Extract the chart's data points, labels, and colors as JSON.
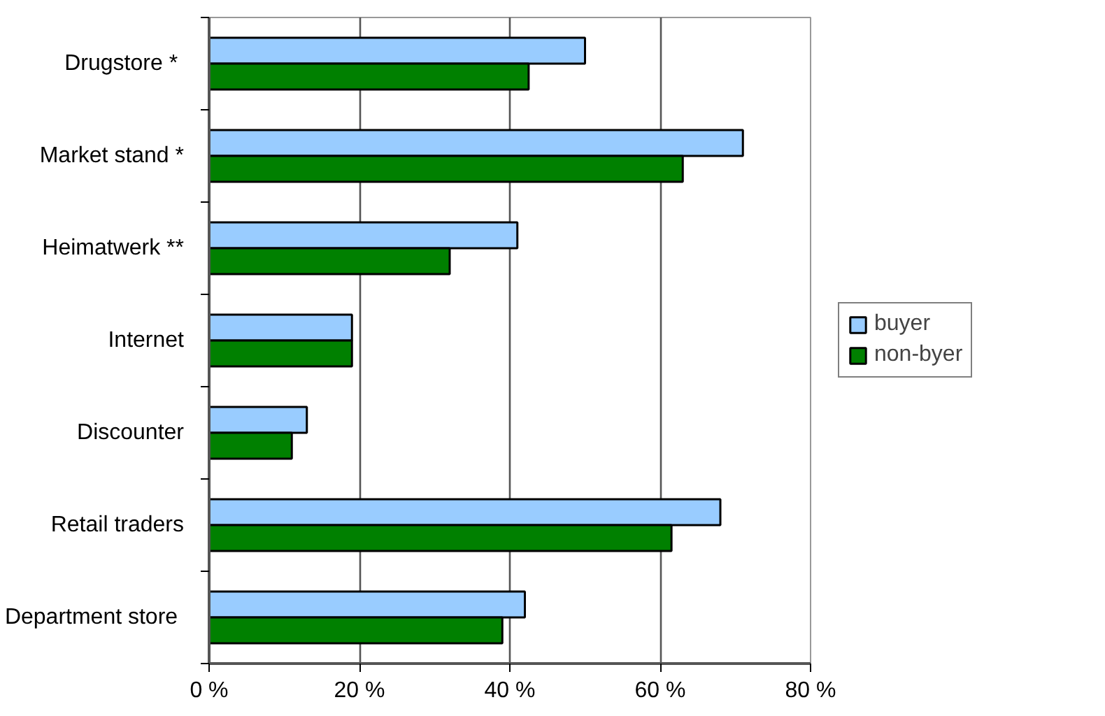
{
  "chart_data": {
    "type": "bar",
    "orientation": "horizontal",
    "categories": [
      "Drugstore  *",
      "Market stand *",
      "Heimatwerk **",
      "Internet",
      "Discounter",
      "Retail traders",
      "Department  store"
    ],
    "series": [
      {
        "name": "buyer",
        "color": "#99ccff",
        "values": [
          50,
          71,
          41,
          19,
          13,
          68,
          42
        ]
      },
      {
        "name": "non-byer",
        "color": "#008000",
        "values": [
          42.5,
          63,
          32,
          19,
          11,
          61.5,
          39
        ]
      }
    ],
    "xlim": [
      0,
      80
    ],
    "xticks": [
      {
        "value": 0,
        "label": "0 %"
      },
      {
        "value": 20,
        "label": "20 %"
      },
      {
        "value": 40,
        "label": "40 %"
      },
      {
        "value": 60,
        "label": "60 %"
      },
      {
        "value": 80,
        "label": "80 %"
      }
    ],
    "grid": "x",
    "legend": "right"
  }
}
